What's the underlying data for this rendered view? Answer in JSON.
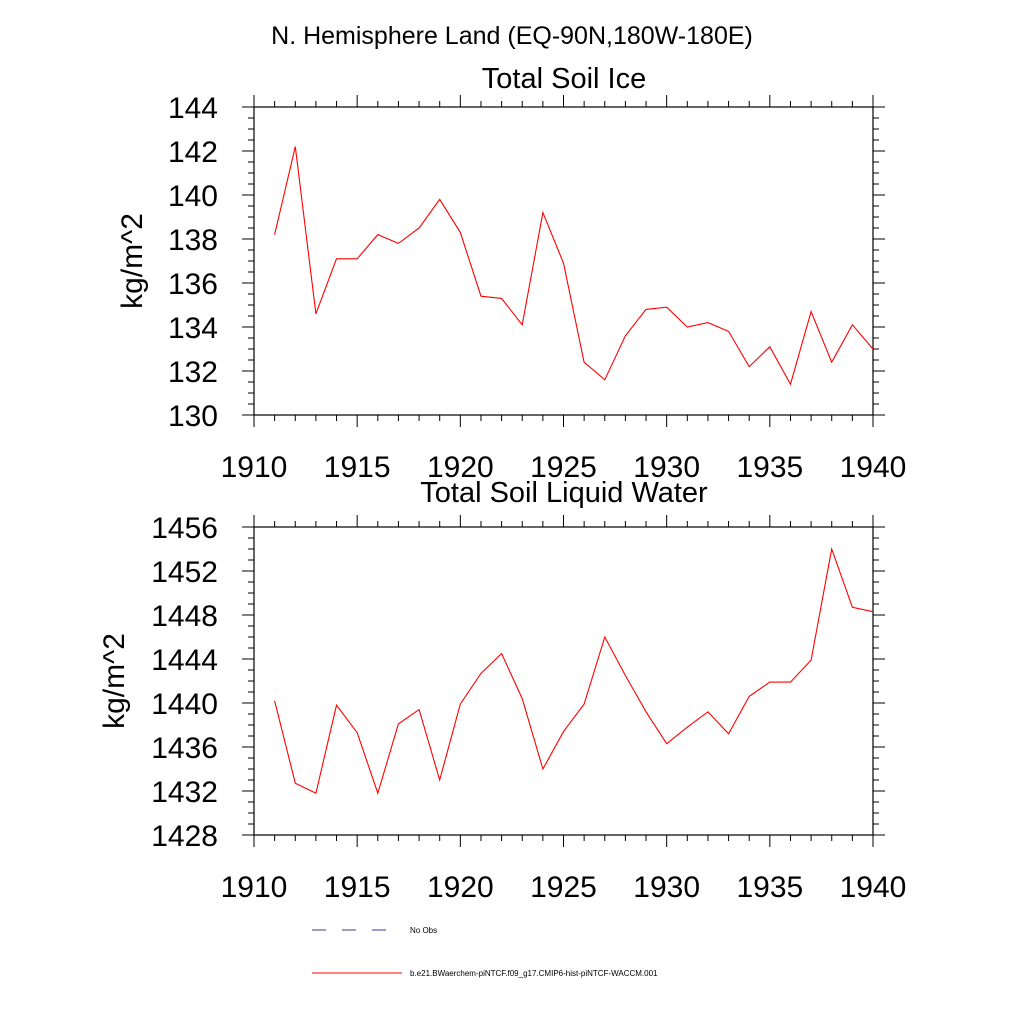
{
  "figure_title": "N. Hemisphere Land (EQ-90N,180W-180E)",
  "colors": {
    "series": "#ff0000",
    "obs": "#3a3a8c",
    "axis": "#000000"
  },
  "legend": {
    "obs_label": "No Obs",
    "model_label": "b.e21.BWaerchem-piNTCF.f09_g17.CMIP6-hist-piNTCF-WACCM.001"
  },
  "chart_data": [
    {
      "type": "line",
      "title": "Total Soil Ice",
      "ylabel": "kg/m^2",
      "xlim": [
        1910,
        1940
      ],
      "ylim": [
        130,
        144
      ],
      "x_ticks": [
        1910,
        1915,
        1920,
        1925,
        1930,
        1935,
        1940
      ],
      "y_ticks": [
        130,
        132,
        134,
        136,
        138,
        140,
        142,
        144
      ],
      "x_minor_step": 1,
      "y_minor_step": 0.5,
      "series": [
        {
          "name": "b.e21.BWaerchem-piNTCF.f09_g17.CMIP6-hist-piNTCF-WACCM.001",
          "x": [
            1911,
            1912,
            1913,
            1914,
            1915,
            1916,
            1917,
            1918,
            1919,
            1920,
            1921,
            1922,
            1923,
            1924,
            1925,
            1926,
            1927,
            1928,
            1929,
            1930,
            1931,
            1932,
            1933,
            1934,
            1935,
            1936,
            1937,
            1938,
            1939,
            1940
          ],
          "values": [
            138.2,
            142.2,
            134.6,
            137.1,
            137.1,
            138.2,
            137.8,
            138.5,
            139.8,
            138.3,
            135.4,
            135.3,
            134.1,
            139.2,
            136.9,
            132.4,
            131.6,
            133.6,
            134.8,
            134.9,
            134.0,
            134.2,
            133.8,
            132.2,
            133.1,
            131.4,
            134.7,
            132.4,
            134.1,
            133.0
          ]
        }
      ]
    },
    {
      "type": "line",
      "title": "Total Soil Liquid Water",
      "ylabel": "kg/m^2",
      "xlim": [
        1910,
        1940
      ],
      "ylim": [
        1428,
        1456
      ],
      "x_ticks": [
        1910,
        1915,
        1920,
        1925,
        1930,
        1935,
        1940
      ],
      "y_ticks": [
        1428,
        1432,
        1436,
        1440,
        1444,
        1448,
        1452,
        1456
      ],
      "x_minor_step": 1,
      "y_minor_step": 1,
      "series": [
        {
          "name": "b.e21.BWaerchem-piNTCF.f09_g17.CMIP6-hist-piNTCF-WACCM.001",
          "x": [
            1911,
            1912,
            1913,
            1914,
            1915,
            1916,
            1917,
            1918,
            1919,
            1920,
            1921,
            1922,
            1923,
            1924,
            1925,
            1926,
            1927,
            1928,
            1929,
            1930,
            1931,
            1932,
            1933,
            1934,
            1935,
            1936,
            1937,
            1938,
            1939,
            1940
          ],
          "values": [
            1440.2,
            1432.7,
            1431.8,
            1439.8,
            1437.3,
            1431.8,
            1438.1,
            1439.4,
            1433.0,
            1439.9,
            1442.7,
            1444.5,
            1440.4,
            1434.0,
            1437.4,
            1439.9,
            1446.0,
            1442.5,
            1439.2,
            1436.3,
            1437.8,
            1439.2,
            1437.2,
            1440.6,
            1441.9,
            1441.9,
            1443.9,
            1454.0,
            1448.7,
            1448.3
          ]
        }
      ]
    }
  ]
}
